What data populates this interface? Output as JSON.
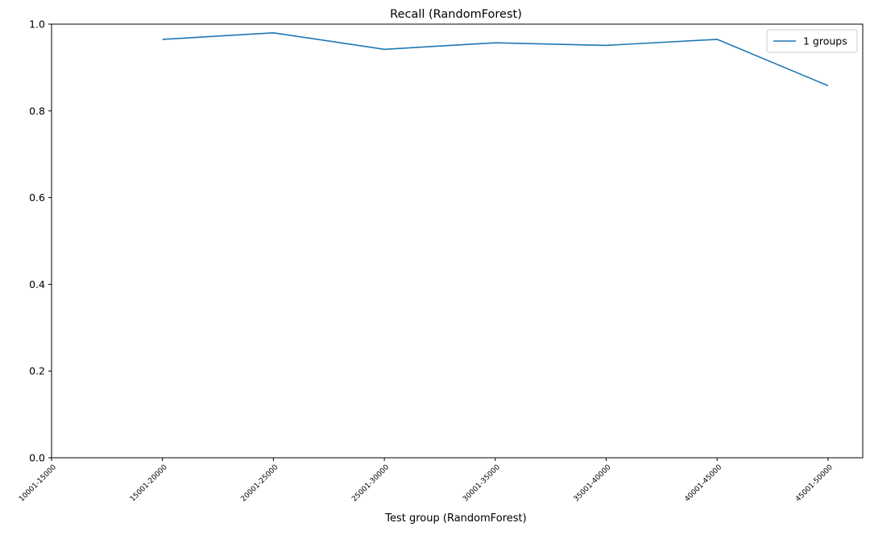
{
  "chart_data": {
    "type": "line",
    "title": "Recall (RandomForest)",
    "xlabel": "Test group (RandomForest)",
    "ylabel": "",
    "categories": [
      "10001-15000",
      "15001-20000",
      "20001-25000",
      "25001-30000",
      "30001-35000",
      "35001-40000",
      "40001-45000",
      "45001-50000"
    ],
    "series": [
      {
        "name": "1 groups",
        "color": "#1f77b4",
        "values": [
          null,
          0.965,
          0.98,
          0.942,
          0.957,
          0.951,
          0.965,
          0.858
        ]
      }
    ],
    "ylim": [
      0,
      1.0
    ],
    "yticks": [
      "0.0",
      "0.2",
      "0.4",
      "0.6",
      "0.8",
      "1.0"
    ],
    "grid": false,
    "legend_position": "upper right"
  }
}
